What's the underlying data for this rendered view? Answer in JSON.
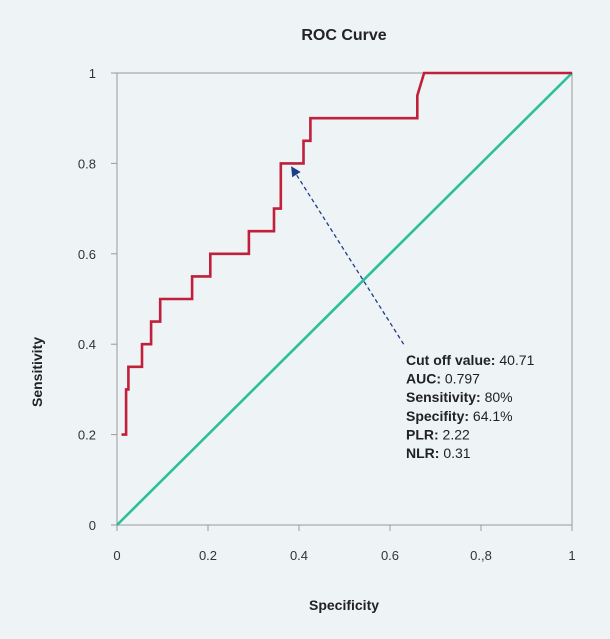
{
  "chart_data": {
    "type": "line",
    "title": "ROC Curve",
    "xlabel": "Specificity",
    "ylabel": "Sensitivity",
    "xlim": [
      0,
      1
    ],
    "ylim": [
      0,
      1
    ],
    "x_ticks": [
      {
        "value": 0,
        "label": "0"
      },
      {
        "value": 0.2,
        "label": "0.2"
      },
      {
        "value": 0.4,
        "label": "0.4"
      },
      {
        "value": 0.6,
        "label": "0.6"
      },
      {
        "value": 0.8,
        "label": "0.,8"
      },
      {
        "value": 1,
        "label": "1"
      }
    ],
    "y_ticks": [
      {
        "value": 0,
        "label": "0"
      },
      {
        "value": 0.2,
        "label": "0.2"
      },
      {
        "value": 0.4,
        "label": "0.4"
      },
      {
        "value": 0.6,
        "label": "0.6"
      },
      {
        "value": 0.8,
        "label": "0.8"
      },
      {
        "value": 1,
        "label": "1"
      }
    ],
    "series": [
      {
        "name": "ROC curve",
        "color": "#c0203a",
        "x": [
          0.01,
          0.02,
          0.02,
          0.025,
          0.025,
          0.055,
          0.055,
          0.075,
          0.075,
          0.095,
          0.095,
          0.165,
          0.165,
          0.205,
          0.205,
          0.29,
          0.29,
          0.345,
          0.345,
          0.36,
          0.36,
          0.41,
          0.41,
          0.425,
          0.425,
          0.66,
          0.66,
          0.675,
          1.0
        ],
        "y": [
          0.2,
          0.2,
          0.3,
          0.3,
          0.35,
          0.35,
          0.4,
          0.4,
          0.45,
          0.45,
          0.5,
          0.5,
          0.55,
          0.55,
          0.6,
          0.6,
          0.65,
          0.65,
          0.7,
          0.7,
          0.8,
          0.8,
          0.85,
          0.85,
          0.9,
          0.9,
          0.95,
          1.0,
          1.0
        ]
      },
      {
        "name": "Reference line",
        "color": "#2bbf9a",
        "x": [
          0,
          1
        ],
        "y": [
          0,
          1
        ]
      }
    ],
    "annotation": {
      "arrow_from": [
        0.63,
        0.4
      ],
      "arrow_to": [
        0.385,
        0.79
      ],
      "arrow_color": "#1f3c88",
      "lines": [
        {
          "key": "Cut off value:",
          "value": " 40.71"
        },
        {
          "key": "AUC:",
          "value": " 0.797"
        },
        {
          "key": "Sensitivity:",
          "value": " 80%"
        },
        {
          "key": "Specifity:",
          "value": " 64.1%"
        },
        {
          "key": "PLR:",
          "value": " 2.22"
        },
        {
          "key": "NLR:",
          "value": " 0.31"
        }
      ]
    }
  }
}
